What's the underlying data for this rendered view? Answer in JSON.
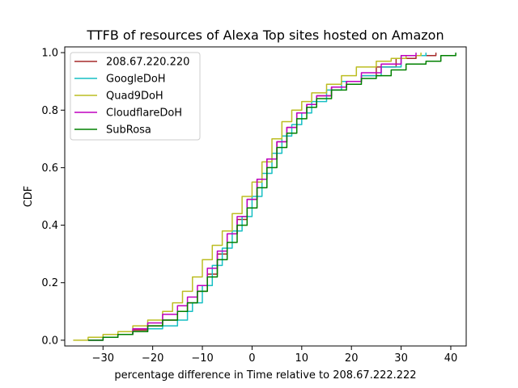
{
  "chart_data": {
    "type": "line",
    "title": "TTFB of resources of Alexa Top sites hosted on Amazon",
    "xlabel": "percentage difference in Time relative to 208.67.222.222",
    "ylabel": "CDF",
    "xlim": [
      -37.7,
      43.1
    ],
    "ylim": [
      -0.02,
      1.02
    ],
    "x_ticks": [
      -30,
      -20,
      -10,
      0,
      10,
      20,
      30,
      40
    ],
    "x_tick_labels": [
      "−30",
      "−20",
      "−10",
      "0",
      "10",
      "20",
      "30",
      "40"
    ],
    "y_ticks": [
      0.0,
      0.2,
      0.4,
      0.6,
      0.8,
      1.0
    ],
    "y_tick_labels": [
      "0.0",
      "0.2",
      "0.4",
      "0.6",
      "0.8",
      "1.0"
    ],
    "grid": false,
    "legend_position": "upper left",
    "series": [
      {
        "name": "208.67.220.220",
        "color": "#a52a2a",
        "x": [
          -33,
          -30,
          -27,
          -24,
          -21,
          -18,
          -15,
          -13,
          -11,
          -9,
          -7,
          -5,
          -3,
          -1,
          1,
          3,
          5,
          7,
          9,
          11,
          13,
          16,
          19,
          22,
          25,
          29,
          33,
          37
        ],
        "y": [
          0.0,
          0.01,
          0.02,
          0.035,
          0.05,
          0.07,
          0.1,
          0.13,
          0.17,
          0.23,
          0.3,
          0.37,
          0.42,
          0.49,
          0.56,
          0.63,
          0.69,
          0.74,
          0.79,
          0.82,
          0.85,
          0.88,
          0.9,
          0.92,
          0.95,
          0.98,
          0.99,
          1.0
        ]
      },
      {
        "name": "GoogleDoH",
        "color": "#17bfc4",
        "x": [
          -33,
          -30,
          -27,
          -24,
          -21,
          -18,
          -15,
          -13,
          -12,
          -10,
          -8,
          -6,
          -4,
          -2,
          0,
          2,
          4,
          6,
          8,
          10,
          12,
          15,
          18,
          22,
          26,
          30,
          35
        ],
        "y": [
          0.0,
          0.01,
          0.02,
          0.03,
          0.04,
          0.05,
          0.07,
          0.1,
          0.13,
          0.19,
          0.26,
          0.32,
          0.38,
          0.43,
          0.5,
          0.58,
          0.65,
          0.71,
          0.75,
          0.79,
          0.83,
          0.87,
          0.9,
          0.92,
          0.95,
          0.99,
          1.0
        ]
      },
      {
        "name": "Quad9DoH",
        "color": "#bcbd22",
        "x": [
          -36,
          -33,
          -30,
          -27,
          -24,
          -21,
          -18,
          -16,
          -14,
          -12,
          -10,
          -8,
          -6,
          -4,
          -2,
          0,
          2,
          4,
          6,
          8,
          10,
          12,
          15,
          18,
          21,
          25,
          28,
          31,
          34
        ],
        "y": [
          0.0,
          0.01,
          0.02,
          0.03,
          0.05,
          0.07,
          0.1,
          0.13,
          0.17,
          0.22,
          0.28,
          0.33,
          0.38,
          0.44,
          0.5,
          0.55,
          0.62,
          0.7,
          0.76,
          0.8,
          0.83,
          0.86,
          0.89,
          0.92,
          0.95,
          0.97,
          0.98,
          0.99,
          1.0
        ]
      },
      {
        "name": "CloudflareDoH",
        "color": "#bf00bf",
        "x": [
          -33,
          -30,
          -27,
          -24,
          -21,
          -18,
          -15,
          -13,
          -11,
          -9,
          -7,
          -5,
          -3,
          -1,
          1,
          3,
          5,
          7,
          9,
          11,
          13,
          16,
          19,
          22,
          26,
          30,
          33
        ],
        "y": [
          0.0,
          0.01,
          0.02,
          0.04,
          0.06,
          0.09,
          0.12,
          0.15,
          0.19,
          0.25,
          0.31,
          0.37,
          0.43,
          0.49,
          0.56,
          0.63,
          0.69,
          0.74,
          0.79,
          0.82,
          0.85,
          0.88,
          0.9,
          0.93,
          0.96,
          0.99,
          1.0
        ]
      },
      {
        "name": "SubRosa",
        "color": "#008000",
        "x": [
          -33,
          -30,
          -27,
          -24,
          -21,
          -18,
          -15,
          -13,
          -11,
          -9,
          -7,
          -5,
          -3,
          -1,
          1,
          3,
          5,
          7,
          9,
          11,
          13,
          16,
          19,
          22,
          25,
          28,
          31,
          35,
          38,
          41
        ],
        "y": [
          0.0,
          0.01,
          0.02,
          0.03,
          0.05,
          0.07,
          0.1,
          0.13,
          0.17,
          0.22,
          0.28,
          0.34,
          0.4,
          0.46,
          0.53,
          0.6,
          0.67,
          0.72,
          0.77,
          0.81,
          0.84,
          0.87,
          0.89,
          0.91,
          0.92,
          0.94,
          0.96,
          0.97,
          0.99,
          1.0
        ]
      }
    ]
  }
}
